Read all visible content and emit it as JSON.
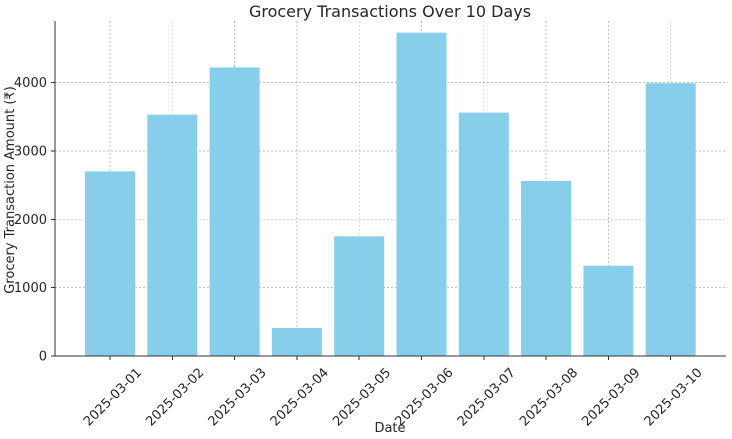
{
  "chart_data": {
    "type": "bar",
    "title": "Grocery Transactions Over 10 Days",
    "xlabel": "Date",
    "ylabel": "Grocery Transaction Amount (₹)",
    "categories": [
      "2025-03-01",
      "2025-03-02",
      "2025-03-03",
      "2025-03-04",
      "2025-03-05",
      "2025-03-06",
      "2025-03-07",
      "2025-03-08",
      "2025-03-09",
      "2025-03-10"
    ],
    "values": [
      2700,
      3530,
      4220,
      410,
      1750,
      4730,
      3560,
      2560,
      1320,
      3990
    ],
    "yticks": [
      0,
      1000,
      2000,
      3000,
      4000
    ],
    "ylim": [
      0,
      4900
    ],
    "grid": true,
    "colors": {
      "bar": "#87ceeb",
      "axis": "#333333",
      "grid": "#b0b0b0",
      "text": "#262626"
    }
  }
}
